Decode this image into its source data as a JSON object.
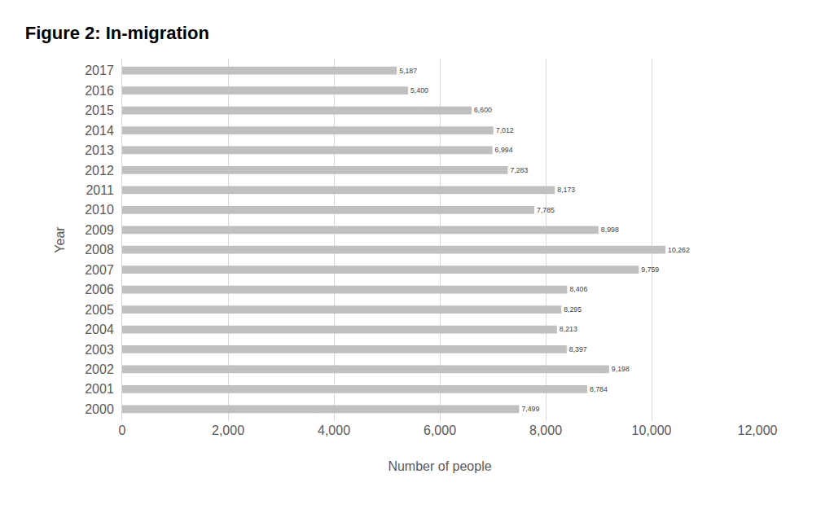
{
  "chart_data": {
    "type": "bar",
    "orientation": "horizontal",
    "title": "Figure 2: In-migration",
    "x_label": "Number of people",
    "y_label": "Year",
    "categories": [
      "2000",
      "2001",
      "2002",
      "2003",
      "2004",
      "2005",
      "2006",
      "2007",
      "2008",
      "2009",
      "2010",
      "2011",
      "2012",
      "2013",
      "2014",
      "2015",
      "2016",
      "2017"
    ],
    "values": [
      7499,
      8784,
      9198,
      8397,
      8213,
      8295,
      8406,
      9759,
      10262,
      8998,
      7785,
      8173,
      7283,
      6994,
      7012,
      6600,
      5400,
      5187
    ],
    "value_labels": [
      "7,499",
      "8,784",
      "9,198",
      "8,397",
      "8,213",
      "8,295",
      "8,406",
      "9,759",
      "10,262",
      "8,998",
      "7,785",
      "8,173",
      "7,283",
      "6,994",
      "7,012",
      "6,600",
      "5,400",
      "5,187"
    ],
    "data_labels": true,
    "color": "#c0c0c0",
    "xlim": [
      0,
      12000
    ],
    "xticks": [
      0,
      {
        "value": 2000,
        "label": "2,000"
      },
      {
        "value": 4000,
        "label": "4,000"
      },
      {
        "value": 6000,
        "label": "6,000"
      },
      {
        "value": 8000,
        "label": "8,000"
      },
      {
        "value": 10000,
        "label": "10,000"
      },
      {
        "value": 12000,
        "label": "12,000"
      }
    ],
    "grid": true
  }
}
